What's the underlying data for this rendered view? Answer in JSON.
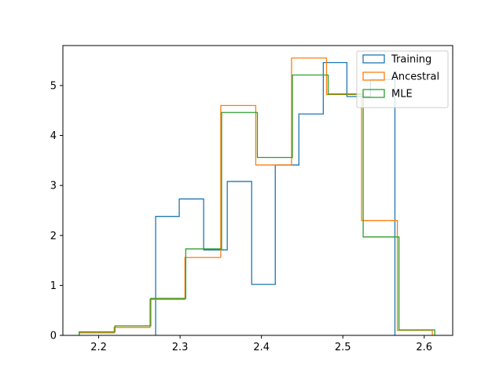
{
  "chart_data": {
    "type": "histogram",
    "title": "",
    "xlabel": "",
    "ylabel": "",
    "xlim": [
      2.156,
      2.635
    ],
    "ylim": [
      0,
      5.8
    ],
    "xticks": [
      2.2,
      2.3,
      2.4,
      2.5,
      2.6
    ],
    "yticks": [
      0,
      1,
      2,
      3,
      4,
      5
    ],
    "grid": false,
    "legend_position": "top-right",
    "series": [
      {
        "name": "Training",
        "color": "#1f77b4",
        "edges": [
          2.27,
          2.299,
          2.329,
          2.358,
          2.388,
          2.417,
          2.446,
          2.476,
          2.505,
          2.534,
          2.564
        ],
        "values": [
          2.38,
          2.73,
          1.71,
          3.08,
          1.02,
          3.41,
          4.43,
          5.46,
          4.78,
          5.12
        ]
      },
      {
        "name": "Ancestral",
        "color": "#ff7f0e",
        "edges": [
          2.176,
          2.219,
          2.263,
          2.306,
          2.35,
          2.393,
          2.437,
          2.48,
          2.523,
          2.567,
          2.61
        ],
        "values": [
          0.05,
          0.16,
          0.72,
          1.56,
          4.6,
          3.41,
          5.55,
          4.82,
          2.3,
          0.1
        ]
      },
      {
        "name": "MLE",
        "color": "#2ca02c",
        "edges": [
          2.176,
          2.22,
          2.264,
          2.307,
          2.351,
          2.395,
          2.438,
          2.482,
          2.525,
          2.569,
          2.613
        ],
        "values": [
          0.07,
          0.19,
          0.74,
          1.73,
          4.46,
          3.56,
          5.21,
          4.83,
          1.97,
          0.11
        ]
      }
    ]
  }
}
